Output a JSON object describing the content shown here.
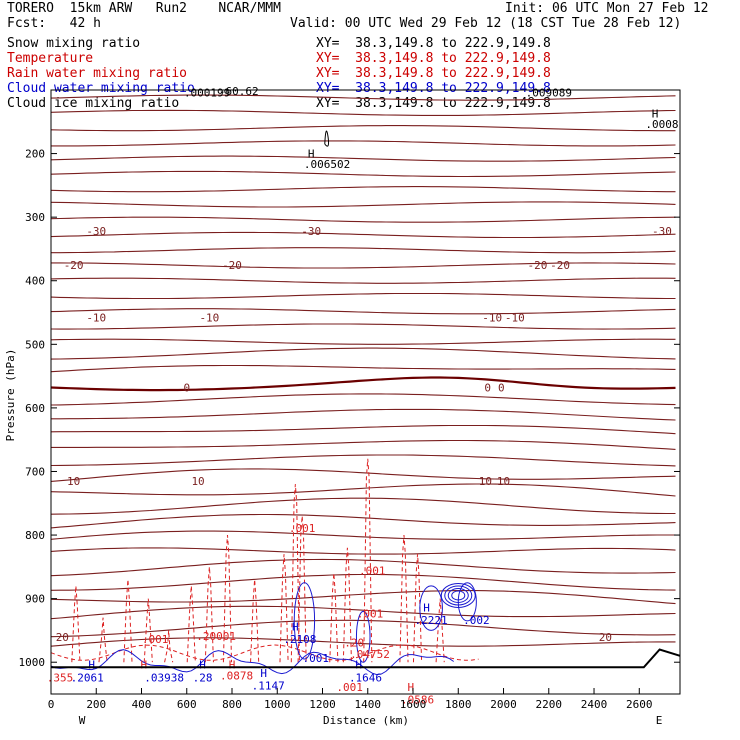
{
  "header": {
    "model_line": "TORERO  15km ARW   Run2    NCAR/MMM",
    "init": "Init: 06 UTC Mon 27 Feb 12",
    "fcst": "Fcst:   42 h",
    "valid": "Valid: 00 UTC Wed 29 Feb 12 (18 CST Tue 28 Feb 12)"
  },
  "legend": [
    {
      "label": "Snow mixing ratio",
      "xy": "XY=  38.3,149.8 to 222.9,149.8",
      "color": "#000000"
    },
    {
      "label": "Temperature",
      "xy": "XY=  38.3,149.8 to 222.9,149.8",
      "color": "#cc0000"
    },
    {
      "label": "Rain water mixing ratio",
      "xy": "XY=  38.3,149.8 to 222.9,149.8",
      "color": "#cc0000"
    },
    {
      "label": "Cloud water mixing ratio",
      "xy": "XY=  38.3,149.8 to 222.9,149.8",
      "color": "#0000cc"
    },
    {
      "label": "Cloud ice mixing ratio",
      "xy": "XY=  38.3,149.8 to 222.9,149.8",
      "color": "#000000"
    }
  ],
  "chart_data": {
    "type": "line",
    "xlabel": "Distance (km)",
    "ylabel": "Pressure (hPa)",
    "xlim": [
      0,
      2780
    ],
    "ylim": [
      100,
      1050
    ],
    "x_ticks": [
      0,
      200,
      400,
      600,
      800,
      1000,
      1200,
      1400,
      1600,
      1800,
      2000,
      2200,
      2400,
      2600
    ],
    "y_ticks": [
      200,
      300,
      400,
      500,
      600,
      700,
      800,
      900,
      1000
    ],
    "axis_end_labels": {
      "left": "W",
      "right": "E"
    },
    "colors": {
      "temperature": "#7a1f1f",
      "freezing": "#6b0000",
      "rain": "#dd2222",
      "cloud_water": "#1a1ad0",
      "ground": "#000000"
    },
    "temperature_isotherms": [
      {
        "level": -30,
        "label": "-30",
        "label_x": [
          200,
          1150,
          2700
        ]
      },
      {
        "level": -20,
        "label": "-20",
        "label_x": [
          100,
          800,
          2150,
          2250
        ]
      },
      {
        "level": -10,
        "label": "-10",
        "label_x": [
          200,
          700,
          1950,
          2050
        ]
      },
      {
        "level": 0,
        "label": "0",
        "label_x": [
          600,
          1930,
          1990
        ]
      },
      {
        "level": 10,
        "label": "10",
        "label_x": [
          100,
          650,
          1920,
          2000
        ]
      },
      {
        "level": 20,
        "label": "20",
        "label_x": [
          50,
          2450
        ]
      }
    ],
    "field_labels": [
      {
        "text": "-60.62",
        "x": 830,
        "p": 108,
        "color": "#000000"
      },
      {
        "text": ".000199",
        "x": 690,
        "p": 110,
        "color": "#000000"
      },
      {
        "text": ".009089",
        "x": 2200,
        "p": 110,
        "color": "#000000"
      },
      {
        "text": "H",
        "x": 2670,
        "p": 143,
        "color": "#000000"
      },
      {
        "text": ".0008",
        "x": 2700,
        "p": 160,
        "color": "#000000"
      },
      {
        "text": "H",
        "x": 1150,
        "p": 206,
        "color": "#000000"
      },
      {
        "text": ".006502",
        "x": 1220,
        "p": 223,
        "color": "#000000"
      },
      {
        "text": ".001",
        "x": 1110,
        "p": 795,
        "color": "#dd2222"
      },
      {
        "text": ".001",
        "x": 1420,
        "p": 862,
        "color": "#dd2222"
      },
      {
        "text": ".001",
        "x": 1410,
        "p": 930,
        "color": "#dd2222"
      },
      {
        "text": ".001",
        "x": 460,
        "p": 970,
        "color": "#dd2222"
      },
      {
        "text": ".20001",
        "x": 730,
        "p": 965,
        "color": "#dd2222"
      },
      {
        "text": ".20",
        "x": 1340,
        "p": 975,
        "color": "#dd2222"
      },
      {
        "text": ".04752",
        "x": 1410,
        "p": 993,
        "color": "#dd2222"
      },
      {
        "text": ".001",
        "x": 1320,
        "p": 1045,
        "color": "#dd2222"
      },
      {
        "text": "H",
        "x": 1590,
        "p": 1045,
        "color": "#dd2222"
      },
      {
        "text": ".0586",
        "x": 1620,
        "p": 1065,
        "color": "#dd2222"
      },
      {
        "text": ".0878",
        "x": 820,
        "p": 1027,
        "color": "#dd2222"
      },
      {
        "text": "H",
        "x": 410,
        "p": 1010,
        "color": "#dd2222"
      },
      {
        "text": ".355",
        "x": 40,
        "p": 1030,
        "color": "#dd2222"
      },
      {
        "text": "H",
        "x": 800,
        "p": 1010,
        "color": "#dd2222"
      },
      {
        "text": "H",
        "x": 180,
        "p": 1010,
        "color": "#0000cc"
      },
      {
        "text": ".2061",
        "x": 160,
        "p": 1030,
        "color": "#0000cc"
      },
      {
        "text": ".03938",
        "x": 500,
        "p": 1030,
        "color": "#0000cc"
      },
      {
        "text": "H",
        "x": 670,
        "p": 1010,
        "color": "#0000cc"
      },
      {
        "text": ".28",
        "x": 670,
        "p": 1030,
        "color": "#0000cc"
      },
      {
        "text": "H",
        "x": 940,
        "p": 1023,
        "color": "#0000cc"
      },
      {
        "text": ".1147",
        "x": 960,
        "p": 1043,
        "color": "#0000cc"
      },
      {
        "text": "H",
        "x": 1080,
        "p": 950,
        "color": "#0000cc"
      },
      {
        "text": ".2108",
        "x": 1100,
        "p": 970,
        "color": "#0000cc"
      },
      {
        "text": ".001",
        "x": 1170,
        "p": 1000,
        "color": "#0000cc"
      },
      {
        "text": "H",
        "x": 1360,
        "p": 1010,
        "color": "#0000cc"
      },
      {
        "text": ".1646",
        "x": 1390,
        "p": 1030,
        "color": "#0000cc"
      },
      {
        "text": "H",
        "x": 1660,
        "p": 920,
        "color": "#0000cc"
      },
      {
        "text": ".2221",
        "x": 1680,
        "p": 940,
        "color": "#0000cc"
      },
      {
        "text": ".002",
        "x": 1880,
        "p": 940,
        "color": "#0000cc"
      }
    ]
  }
}
